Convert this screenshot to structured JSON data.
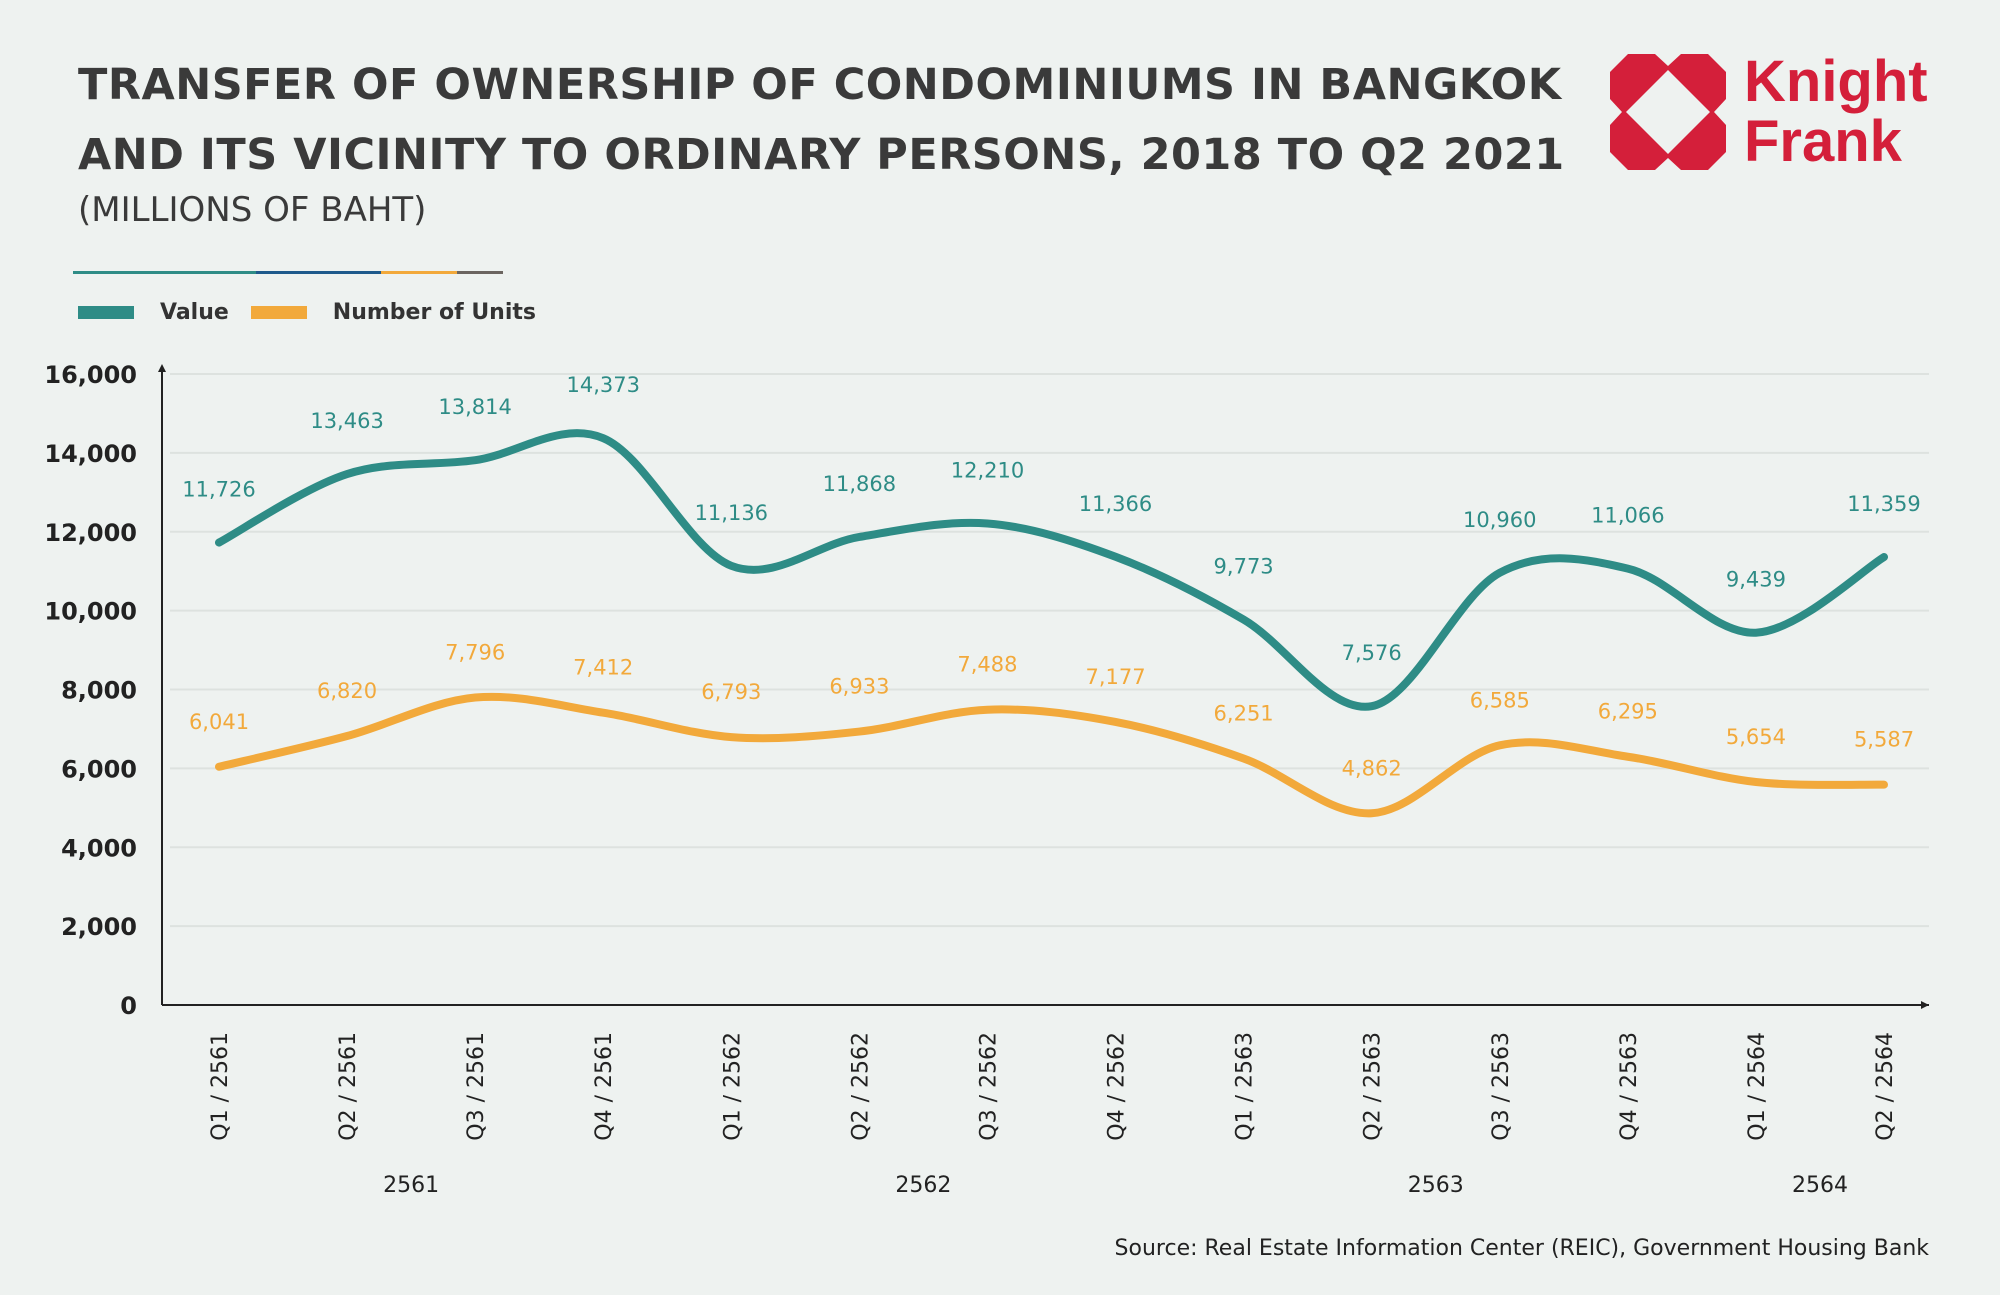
{
  "header": {
    "title_line1": "TRANSFER OF OWNERSHIP OF CONDOMINIUMS IN BANGKOK",
    "title_line2": "AND ITS VICINITY TO ORDINARY PERSONS, 2018 TO Q2 2021",
    "subtitle": "(MILLIONS OF BAHT)"
  },
  "logo": {
    "text_line1": "Knight",
    "text_line2": "Frank",
    "color": "#d41f3a"
  },
  "source": "Source: Real Estate Information Center (REIC), Government Housing Bank",
  "chart_data": {
    "type": "line",
    "categories": [
      "Q1 / 2561",
      "Q2 / 2561",
      "Q3 / 2561",
      "Q4 / 2561",
      "Q1 / 2562",
      "Q2 / 2562",
      "Q3 / 2562",
      "Q4 / 2562",
      "Q1 / 2563",
      "Q2 / 2563",
      "Q3 / 2563",
      "Q4 / 2563",
      "Q1 / 2564",
      "Q2 / 2564"
    ],
    "year_groups": [
      {
        "label": "2561",
        "from": 0,
        "to": 3
      },
      {
        "label": "2562",
        "from": 4,
        "to": 7
      },
      {
        "label": "2563",
        "from": 8,
        "to": 11
      },
      {
        "label": "2564",
        "from": 12,
        "to": 13
      }
    ],
    "series": [
      {
        "name": "Value",
        "color": "#2e8c86",
        "values": [
          11726,
          13463,
          13814,
          14373,
          11136,
          11868,
          12210,
          11366,
          9773,
          7576,
          10960,
          11066,
          9439,
          11359
        ],
        "labels": [
          "11,726",
          "13,463",
          "13,814",
          "14,373",
          "11,136",
          "11,868",
          "12,210",
          "11,366",
          "9,773",
          "7,576",
          "10,960",
          "11,066",
          "9,439",
          "11,359"
        ]
      },
      {
        "name": "Number of Units",
        "color": "#f2a93b",
        "values": [
          6041,
          6820,
          7796,
          7412,
          6793,
          6933,
          7488,
          7177,
          6251,
          4862,
          6585,
          6295,
          5654,
          5587
        ],
        "labels": [
          "6,041",
          "6,820",
          "7,796",
          "7,412",
          "6,793",
          "6,933",
          "7,488",
          "7,177",
          "6,251",
          "4,862",
          "6,585",
          "6,295",
          "5,654",
          "5,587"
        ]
      }
    ],
    "ylim": [
      0,
      16000
    ],
    "yticks": [
      "0",
      "2,000",
      "4,000",
      "6,000",
      "8,000",
      "10,000",
      "12,000",
      "14,000",
      "16,000"
    ],
    "grid": true,
    "legend": "top-left"
  }
}
